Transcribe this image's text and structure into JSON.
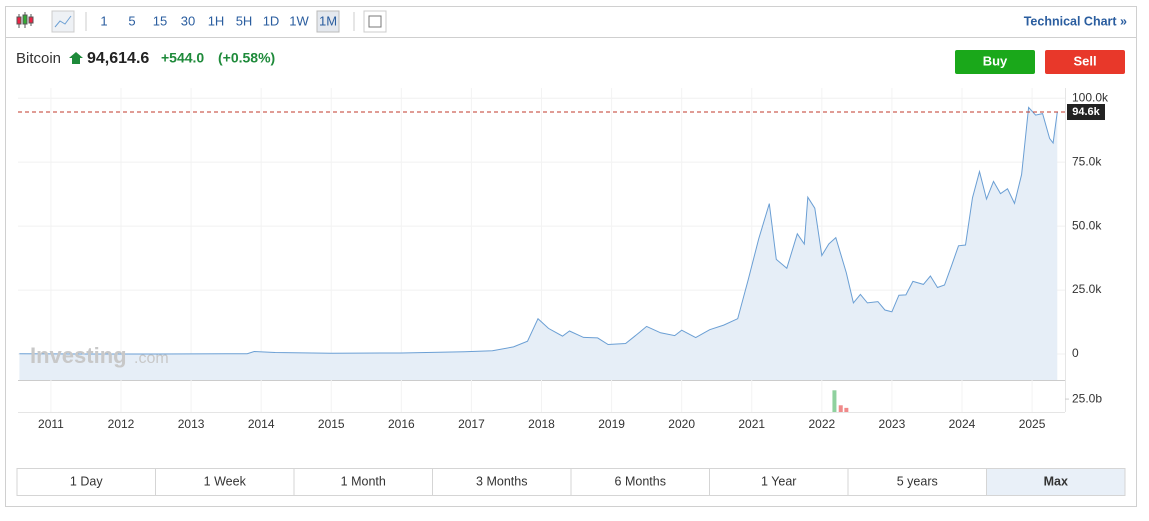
{
  "toolbar": {
    "intervals": [
      "1",
      "5",
      "15",
      "30",
      "1H",
      "5H",
      "1D",
      "1W",
      "1M"
    ],
    "active": "1M",
    "technical_chart": "Technical Chart »"
  },
  "header": {
    "name": "Bitcoin",
    "price": "94,614.6",
    "change": "+544.0",
    "change_percent": "(+0.58%)",
    "buy": "Buy",
    "sell": "Sell"
  },
  "watermark": {
    "brand": "Investing",
    "suffix": ".com"
  },
  "chart_data": [
    {
      "type": "area",
      "color": "#6b9fd4",
      "fill": "#e6eef7",
      "x": [
        2010.55,
        2011.5,
        2012.5,
        2013.5,
        2013.8,
        2013.9,
        2014.2,
        2015,
        2016,
        2016.9,
        2017.3,
        2017.6,
        2017.8,
        2017.95,
        2018.1,
        2018.3,
        2018.4,
        2018.6,
        2018.8,
        2018.95,
        2019.2,
        2019.4,
        2019.5,
        2019.7,
        2019.9,
        2020,
        2020.2,
        2020.4,
        2020.6,
        2020.8,
        2020.95,
        2021.1,
        2021.25,
        2021.35,
        2021.5,
        2021.65,
        2021.75,
        2021.8,
        2021.9,
        2022,
        2022.1,
        2022.2,
        2022.35,
        2022.45,
        2022.55,
        2022.65,
        2022.8,
        2022.9,
        2023,
        2023.1,
        2023.2,
        2023.3,
        2023.45,
        2023.55,
        2023.65,
        2023.75,
        2023.85,
        2023.95,
        2024.05,
        2024.15,
        2024.25,
        2024.35,
        2024.45,
        2024.55,
        2024.65,
        2024.75,
        2024.85,
        2024.95,
        2025.05,
        2025.15,
        2025.25,
        2025.3,
        2025.36
      ],
      "values": [
        70,
        15,
        12,
        100,
        130,
        1000,
        600,
        300,
        400,
        900,
        1300,
        2800,
        5000,
        13800,
        10000,
        7000,
        9000,
        6500,
        6300,
        3700,
        4100,
        8500,
        10800,
        8300,
        7200,
        9300,
        6400,
        9500,
        11300,
        13800,
        29000,
        45000,
        58800,
        37000,
        33500,
        47000,
        43000,
        61300,
        57000,
        38500,
        43000,
        45500,
        31800,
        20000,
        23300,
        20000,
        20500,
        17200,
        16500,
        23000,
        23100,
        28400,
        27200,
        30500,
        26000,
        27000,
        34500,
        42300,
        42600,
        61100,
        71300,
        60600,
        67500,
        62700,
        64600,
        58900,
        70200,
        96400,
        93400,
        94000,
        84300,
        82500,
        94614.6
      ],
      "xlim": [
        2010.53,
        2025.47
      ],
      "xticks": [
        2011,
        2012,
        2013,
        2014,
        2015,
        2016,
        2017,
        2018,
        2019,
        2020,
        2021,
        2022,
        2023,
        2024,
        2025
      ],
      "ylim": [
        -10160,
        104000
      ],
      "yticks": [
        0,
        {
          "value": 25000,
          "label": "25.0k"
        },
        {
          "value": 50000,
          "label": "50.0k"
        },
        {
          "value": 75000,
          "label": "75.0k"
        },
        {
          "value": 100000,
          "label": "100.0k"
        }
      ],
      "grid": true,
      "current_price": {
        "value": 94614.6,
        "label": "94.6k",
        "color": "#c0392b"
      }
    },
    {
      "type": "bar",
      "x": [
        2022.18,
        2022.27,
        2022.35
      ],
      "values": [
        42,
        13,
        8
      ],
      "colors": [
        "#8fd19e",
        "#f08a8a",
        "#f08a8a"
      ],
      "xlim": [
        2010.53,
        2025.47
      ],
      "ylim": [
        0,
        60
      ],
      "yticks": [
        {
          "value": 25,
          "label": "25.0b"
        }
      ]
    }
  ],
  "ranges": {
    "labels": [
      "1 Day",
      "1 Week",
      "1 Month",
      "3 Months",
      "6 Months",
      "1 Year",
      "5 years",
      "Max"
    ],
    "active": "Max"
  }
}
